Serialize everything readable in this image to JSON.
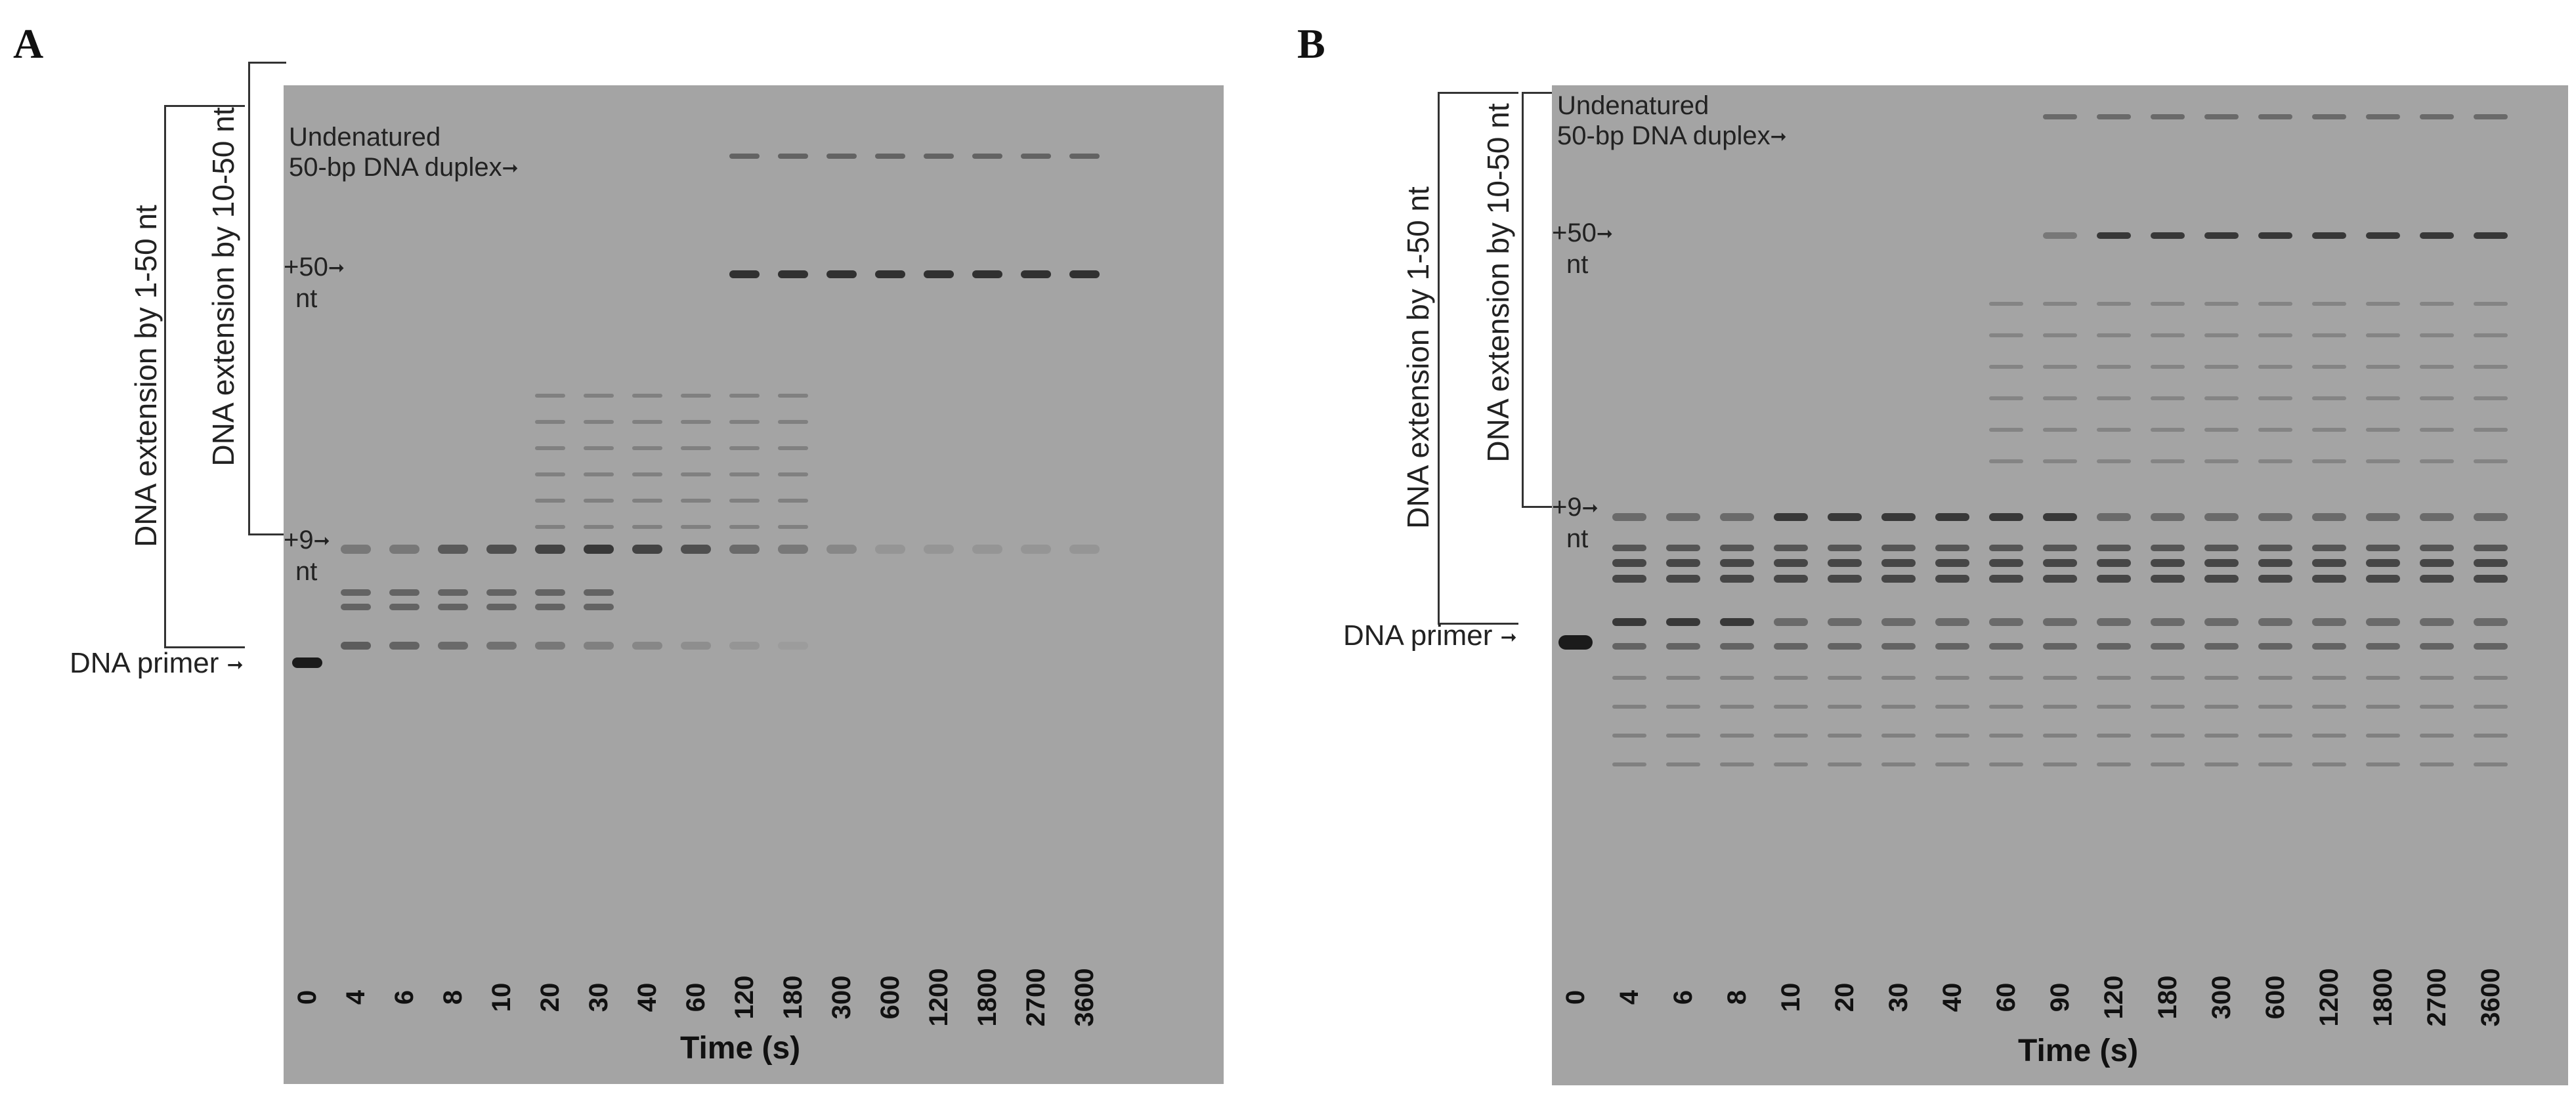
{
  "panels": [
    {
      "letter": "A",
      "axis_title": "Time (s)",
      "lanes": [
        "0",
        "4",
        "6",
        "8",
        "10",
        "20",
        "30",
        "40",
        "60",
        "120",
        "180",
        "300",
        "600",
        "1200",
        "1800",
        "2700",
        "3600"
      ],
      "outer_bracket_label": "DNA extension by 1-50 nt",
      "inner_bracket_label": "DNA extension by 10-50 nt",
      "marker_undenatured_1": "Undenatured",
      "marker_undenatured_2": "50-bp DNA duplex",
      "marker_plus50_1": "+50",
      "marker_plus50_2": "nt",
      "marker_plus9_1": "+9",
      "marker_plus9_2": "nt",
      "marker_primer": "DNA primer"
    },
    {
      "letter": "B",
      "axis_title": "Time (s)",
      "lanes": [
        "0",
        "4",
        "6",
        "8",
        "10",
        "20",
        "30",
        "40",
        "60",
        "90",
        "120",
        "180",
        "300",
        "600",
        "1200",
        "1800",
        "2700",
        "3600"
      ],
      "outer_bracket_label": "DNA extension by 1-50 nt",
      "inner_bracket_label": "DNA extension by 10-50 nt",
      "marker_undenatured_1": "Undenatured",
      "marker_undenatured_2": "50-bp DNA duplex",
      "marker_plus50_1": "+50",
      "marker_plus50_2": "nt",
      "marker_plus9_1": "+9",
      "marker_plus9_2": "nt",
      "marker_primer": "DNA primer"
    }
  ],
  "colors": {
    "gel_background": "#a4a4a4",
    "band_dark": "#1a1a1a",
    "bracket": "#333333"
  }
}
